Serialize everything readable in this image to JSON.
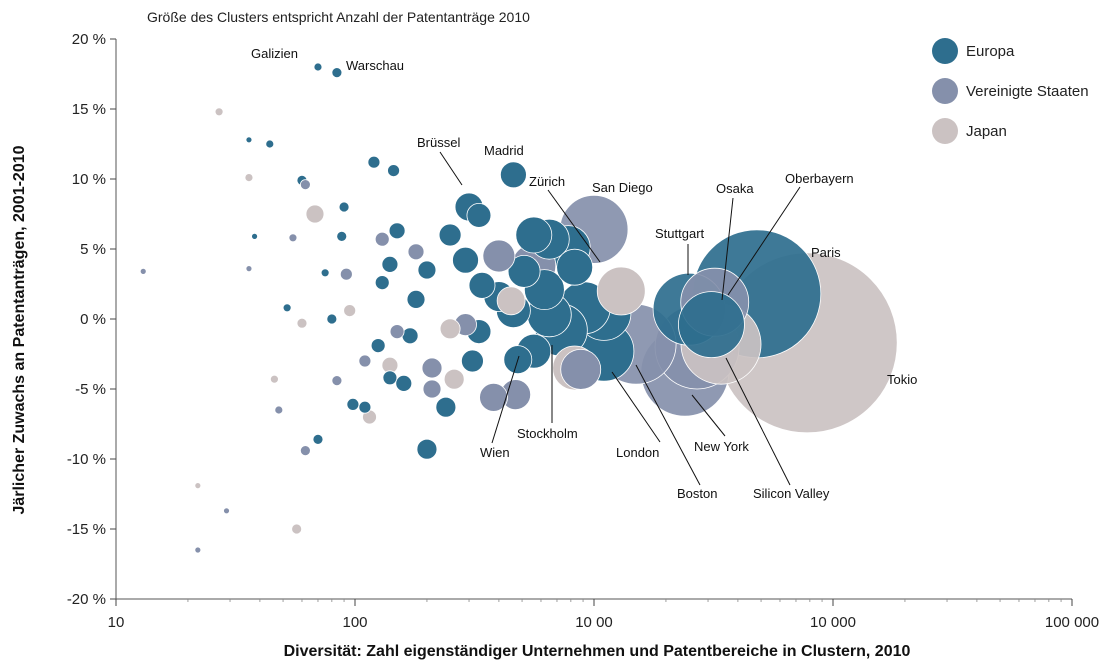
{
  "chart_data": {
    "type": "scatter",
    "title": "",
    "subtitle": "Größe des Clusters entspricht Anzahl der Patentanträge 2010",
    "xlabel": "Diversität: Zahl eigenständiger Unternehmen und Patentbereiche in Clustern, 2010",
    "ylabel": "Järlicher Zuwachs an Patentanträgen, 2001-2010",
    "x_scale": "log",
    "xlim": [
      10,
      100000
    ],
    "ylim": [
      -20,
      20
    ],
    "x_ticks": [
      {
        "value": 10,
        "label": "10"
      },
      {
        "value": 100,
        "label": "100"
      },
      {
        "value": 1000,
        "label": "10 00"
      },
      {
        "value": 10000,
        "label": "10 000"
      },
      {
        "value": 100000,
        "label": "100 000"
      }
    ],
    "y_ticks": [
      {
        "value": 20,
        "label": "20 %"
      },
      {
        "value": 15,
        "label": "15 %"
      },
      {
        "value": 10,
        "label": "10 %"
      },
      {
        "value": 5,
        "label": "5 %"
      },
      {
        "value": 0,
        "label": "0 %"
      },
      {
        "value": -5,
        "label": "-5 %"
      },
      {
        "value": -10,
        "label": "-10 %"
      },
      {
        "value": -15,
        "label": "-15 %"
      },
      {
        "value": -20,
        "label": "-20 %"
      }
    ],
    "legend_position": "top-right",
    "series_colors": {
      "Europa": "#2e6e8e",
      "Vereinigte Staaten": "#8590ab",
      "Japan": "#cbc2c2"
    },
    "series": [
      {
        "name": "Europa",
        "points": [
          {
            "x": 70,
            "y": 18.0,
            "r": 4,
            "label": "Galizien"
          },
          {
            "x": 84,
            "y": 17.6,
            "r": 5,
            "label": "Warschau"
          },
          {
            "x": 460,
            "y": 10.3,
            "r": 13,
            "label": "Madrid"
          },
          {
            "x": 300,
            "y": 8.0,
            "r": 14,
            "label": "Brüssel"
          },
          {
            "x": 560,
            "y": 6.0,
            "r": 18
          },
          {
            "x": 650,
            "y": 5.7,
            "r": 20
          },
          {
            "x": 780,
            "y": 5.1,
            "r": 22
          },
          {
            "x": 830,
            "y": 3.7,
            "r": 18
          },
          {
            "x": 510,
            "y": 3.4,
            "r": 16
          },
          {
            "x": 620,
            "y": 2.1,
            "r": 20
          },
          {
            "x": 910,
            "y": 0.8,
            "r": 26
          },
          {
            "x": 1100,
            "y": 0.4,
            "r": 27
          },
          {
            "x": 1100,
            "y": -2.3,
            "r": 30,
            "label": "London"
          },
          {
            "x": 730,
            "y": -0.8,
            "r": 26
          },
          {
            "x": 650,
            "y": 0.3,
            "r": 22
          },
          {
            "x": 460,
            "y": 0.6,
            "r": 17
          },
          {
            "x": 400,
            "y": 1.6,
            "r": 15
          },
          {
            "x": 560,
            "y": -2.3,
            "r": 17,
            "label": "Stockholm"
          },
          {
            "x": 480,
            "y": -2.9,
            "r": 14,
            "label": "Wien"
          },
          {
            "x": 330,
            "y": -0.9,
            "r": 12
          },
          {
            "x": 340,
            "y": 2.4,
            "r": 13
          },
          {
            "x": 290,
            "y": 4.2,
            "r": 13
          },
          {
            "x": 250,
            "y": 6.0,
            "r": 11
          },
          {
            "x": 330,
            "y": 7.4,
            "r": 12
          },
          {
            "x": 240,
            "y": -6.3,
            "r": 10
          },
          {
            "x": 200,
            "y": -9.3,
            "r": 10
          },
          {
            "x": 310,
            "y": -3.0,
            "r": 11
          },
          {
            "x": 4800,
            "y": 1.8,
            "r": 64,
            "label": "Paris"
          },
          {
            "x": 2500,
            "y": 0.7,
            "r": 36,
            "label": "Stuttgart"
          },
          {
            "x": 3100,
            "y": -0.4,
            "r": 33,
            "label": "Oberbayern"
          },
          {
            "x": 200,
            "y": 3.5,
            "r": 9
          },
          {
            "x": 180,
            "y": 1.4,
            "r": 9
          },
          {
            "x": 170,
            "y": -1.2,
            "r": 8
          },
          {
            "x": 150,
            "y": 6.3,
            "r": 8
          },
          {
            "x": 140,
            "y": 3.9,
            "r": 8
          },
          {
            "x": 160,
            "y": -4.6,
            "r": 8
          },
          {
            "x": 130,
            "y": 2.6,
            "r": 7
          },
          {
            "x": 125,
            "y": -1.9,
            "r": 7
          },
          {
            "x": 140,
            "y": -4.2,
            "r": 7
          },
          {
            "x": 120,
            "y": 11.2,
            "r": 6
          },
          {
            "x": 145,
            "y": 10.6,
            "r": 6
          },
          {
            "x": 90,
            "y": 8.0,
            "r": 5
          },
          {
            "x": 88,
            "y": 5.9,
            "r": 5
          },
          {
            "x": 98,
            "y": -6.1,
            "r": 6
          },
          {
            "x": 110,
            "y": -6.3,
            "r": 6
          },
          {
            "x": 80,
            "y": 0.0,
            "r": 5
          },
          {
            "x": 70,
            "y": -8.6,
            "r": 5
          },
          {
            "x": 60,
            "y": 9.9,
            "r": 5
          },
          {
            "x": 44,
            "y": 12.5,
            "r": 4
          },
          {
            "x": 36,
            "y": 12.8,
            "r": 3
          },
          {
            "x": 52,
            "y": 0.8,
            "r": 4
          },
          {
            "x": 75,
            "y": 3.3,
            "r": 4
          },
          {
            "x": 38,
            "y": 5.9,
            "r": 3
          }
        ]
      },
      {
        "name": "Vereinigte Staaten",
        "points": [
          {
            "x": 1000,
            "y": 6.4,
            "r": 34,
            "label": "San Diego"
          },
          {
            "x": 2400,
            "y": -3.8,
            "r": 44,
            "label": "New York"
          },
          {
            "x": 1500,
            "y": -1.8,
            "r": 40,
            "label": "Boston"
          },
          {
            "x": 2700,
            "y": -2.0,
            "r": 42,
            "label": "Silicon Valley"
          },
          {
            "x": 3200,
            "y": 1.2,
            "r": 34
          },
          {
            "x": 560,
            "y": 3.8,
            "r": 22
          },
          {
            "x": 880,
            "y": -3.6,
            "r": 20
          },
          {
            "x": 470,
            "y": -5.4,
            "r": 15
          },
          {
            "x": 380,
            "y": -5.6,
            "r": 14
          },
          {
            "x": 400,
            "y": 4.5,
            "r": 16
          },
          {
            "x": 290,
            "y": -0.4,
            "r": 11
          },
          {
            "x": 210,
            "y": -3.5,
            "r": 10
          },
          {
            "x": 210,
            "y": -5.0,
            "r": 9
          },
          {
            "x": 180,
            "y": 4.8,
            "r": 8
          },
          {
            "x": 150,
            "y": -0.9,
            "r": 7
          },
          {
            "x": 130,
            "y": 5.7,
            "r": 7
          },
          {
            "x": 110,
            "y": -3.0,
            "r": 6
          },
          {
            "x": 92,
            "y": 3.2,
            "r": 6
          },
          {
            "x": 84,
            "y": -4.4,
            "r": 5
          },
          {
            "x": 62,
            "y": -9.4,
            "r": 5
          },
          {
            "x": 48,
            "y": -6.5,
            "r": 4
          },
          {
            "x": 55,
            "y": 5.8,
            "r": 4
          },
          {
            "x": 62,
            "y": 9.6,
            "r": 5
          },
          {
            "x": 36,
            "y": 3.6,
            "r": 3
          },
          {
            "x": 29,
            "y": -13.7,
            "r": 3
          },
          {
            "x": 22,
            "y": -16.5,
            "r": 3
          },
          {
            "x": 13,
            "y": 3.4,
            "r": 3
          }
        ]
      },
      {
        "name": "Japan",
        "points": [
          {
            "x": 7800,
            "y": -1.7,
            "r": 90,
            "label": "Tokio"
          },
          {
            "x": 3400,
            "y": -1.8,
            "r": 40,
            "label": "Osaka"
          },
          {
            "x": 1300,
            "y": 2.0,
            "r": 24
          },
          {
            "x": 830,
            "y": -3.5,
            "r": 22
          },
          {
            "x": 450,
            "y": 1.3,
            "r": 14
          },
          {
            "x": 260,
            "y": -4.3,
            "r": 10
          },
          {
            "x": 250,
            "y": -0.7,
            "r": 10
          },
          {
            "x": 140,
            "y": -3.3,
            "r": 8
          },
          {
            "x": 115,
            "y": -7.0,
            "r": 7
          },
          {
            "x": 95,
            "y": 0.6,
            "r": 6
          },
          {
            "x": 68,
            "y": 7.5,
            "r": 9
          },
          {
            "x": 57,
            "y": -15.0,
            "r": 5
          },
          {
            "x": 27,
            "y": 14.8,
            "r": 4
          },
          {
            "x": 36,
            "y": 10.1,
            "r": 4
          },
          {
            "x": 22,
            "y": -11.9,
            "r": 3
          },
          {
            "x": 60,
            "y": -0.3,
            "r": 5
          },
          {
            "x": 46,
            "y": -4.3,
            "r": 4
          }
        ]
      }
    ]
  }
}
